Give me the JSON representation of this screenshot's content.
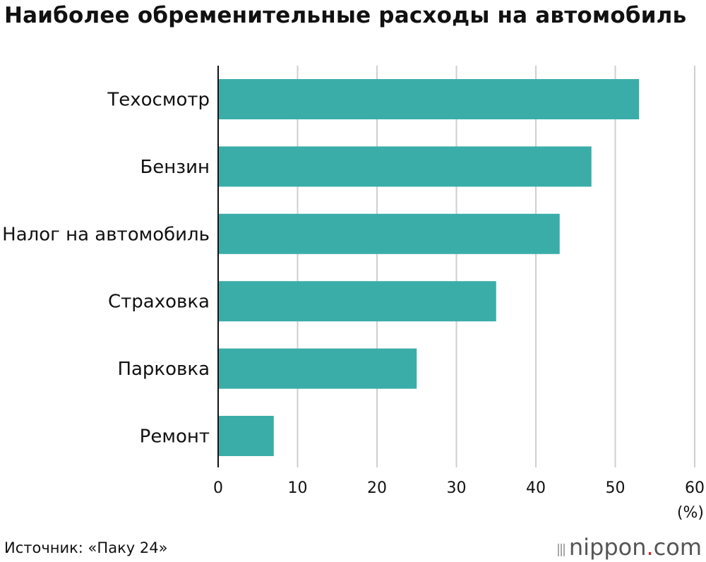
{
  "title": "Наиболее обременительные расходы на автомобиль",
  "chart_data": {
    "type": "bar",
    "orientation": "horizontal",
    "categories": [
      "Техосмотр",
      "Бензин",
      "Налог на автомобиль",
      "Страховка",
      "Парковка",
      "Ремонт"
    ],
    "values": [
      53,
      47,
      43,
      35,
      25,
      7
    ],
    "xlim": [
      0,
      60
    ],
    "xticks": [
      "0",
      "10",
      "20",
      "30",
      "40",
      "50",
      "60"
    ],
    "unit_label": "(%)",
    "bar_color": "#3aada9",
    "grid": true
  },
  "source": "Источник: «Паку 24»",
  "logo": {
    "name": "nippon",
    "dot": ".",
    "suffix": "com"
  }
}
